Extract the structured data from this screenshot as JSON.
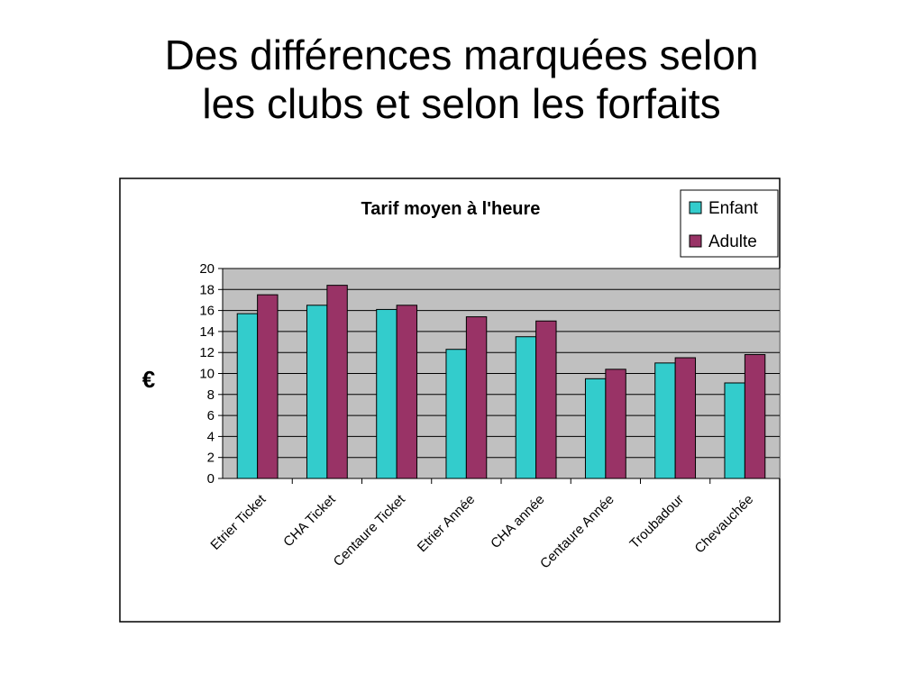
{
  "slide": {
    "title_line1": "Des différences marquées selon",
    "title_line2": "les clubs et selon les forfaits"
  },
  "chart_data": {
    "type": "bar",
    "title": "Tarif moyen à l'heure",
    "ylabel": "€",
    "xlabel": "",
    "ylim": [
      0,
      20
    ],
    "yticks": [
      0,
      2,
      4,
      6,
      8,
      10,
      12,
      14,
      16,
      18,
      20
    ],
    "grid": true,
    "legend_position": "top-right",
    "categories": [
      "Etrier Ticket",
      "CHA Ticket",
      "Centaure Ticket",
      "Etrier Année",
      "CHA année",
      "Centaure Année",
      "Troubadour",
      "Chevauchée"
    ],
    "series": [
      {
        "name": "Enfant",
        "color": "#33CCCC",
        "values": [
          15.7,
          16.5,
          16.1,
          12.3,
          13.5,
          9.5,
          11.0,
          9.1
        ]
      },
      {
        "name": "Adulte",
        "color": "#993366",
        "values": [
          17.5,
          18.4,
          16.5,
          15.4,
          15.0,
          10.4,
          11.5,
          11.8
        ]
      }
    ],
    "plot_background": "#C0C0C0"
  }
}
